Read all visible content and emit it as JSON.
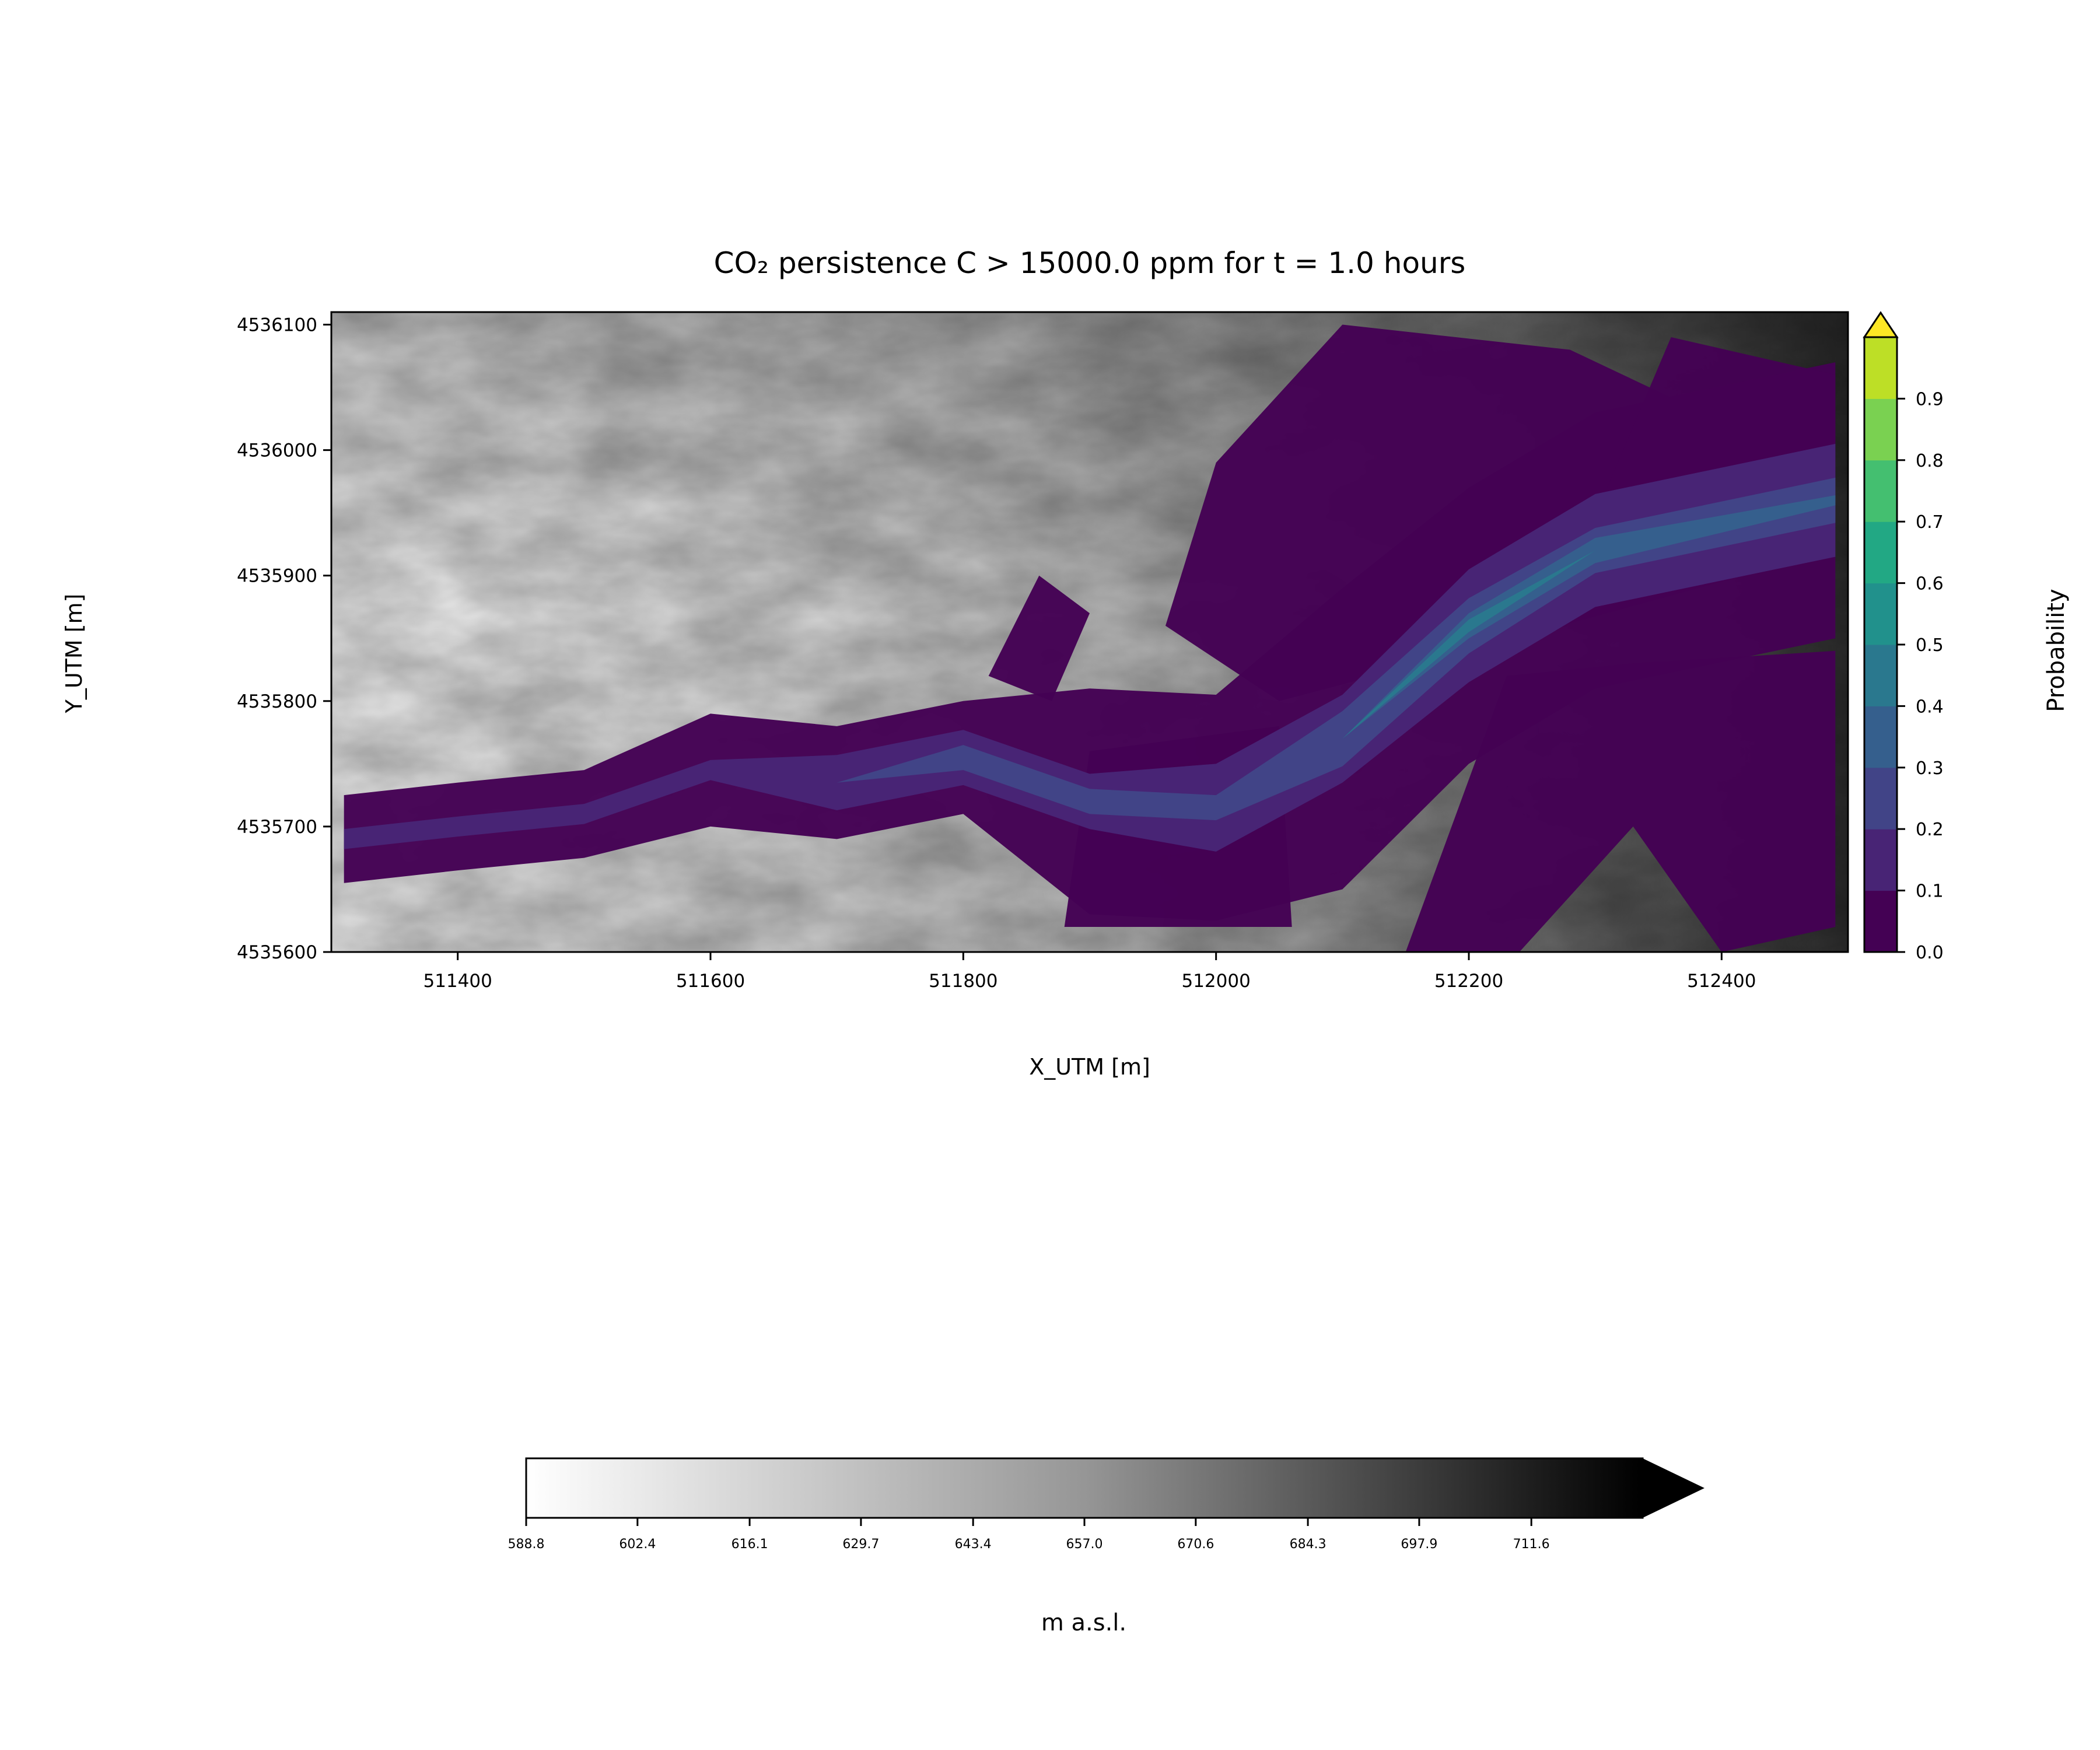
{
  "chart_data": {
    "type": "heatmap",
    "title": "CO₂ persistence C > 15000.0 ppm for t = 1.0 hours",
    "xlabel": "X_UTM [m]",
    "ylabel": "Y_UTM [m]",
    "xlim": [
      511300,
      512500
    ],
    "ylim": [
      4535600,
      4536110
    ],
    "x_ticks": [
      511400,
      511600,
      511800,
      512000,
      512200,
      512400
    ],
    "y_ticks": [
      4535600,
      4535700,
      4535800,
      4535900,
      4536000,
      4536100
    ],
    "grid": false,
    "probability_colorbar": {
      "label": "Probability",
      "levels": [
        0.0,
        0.1,
        0.2,
        0.3,
        0.4,
        0.5,
        0.6,
        0.7,
        0.8,
        0.9
      ],
      "tick_labels": [
        "0.0",
        "0.1",
        "0.2",
        "0.3",
        "0.4",
        "0.5",
        "0.6",
        "0.7",
        "0.8",
        "0.9"
      ],
      "colors": [
        "#440154",
        "#482475",
        "#414487",
        "#355f8d",
        "#2a788e",
        "#21918c",
        "#22a884",
        "#44bf70",
        "#7ad151",
        "#bddf26",
        "#fde725"
      ],
      "extend": "max",
      "placement": "right"
    },
    "elevation_colorbar": {
      "label": "m a.s.l.",
      "tick_labels": [
        "588.8",
        "602.4",
        "616.1",
        "629.7",
        "643.4",
        "657.0",
        "670.6",
        "684.3",
        "697.9",
        "711.6"
      ],
      "colormap": "Greys",
      "range": [
        588.8,
        725.2
      ],
      "extend": "max",
      "placement": "bottom"
    },
    "plume": {
      "core_path": [
        [
          511310,
          4535690
        ],
        [
          511400,
          4535700
        ],
        [
          511500,
          4535710
        ],
        [
          511600,
          4535745
        ],
        [
          511700,
          4535735
        ],
        [
          511800,
          4535755
        ],
        [
          511900,
          4535720
        ],
        [
          512000,
          4535715
        ],
        [
          512100,
          4535770
        ],
        [
          512200,
          4535860
        ],
        [
          512300,
          4535920
        ],
        [
          512490,
          4535960
        ]
      ],
      "probability_max_band": 0.5
    }
  }
}
